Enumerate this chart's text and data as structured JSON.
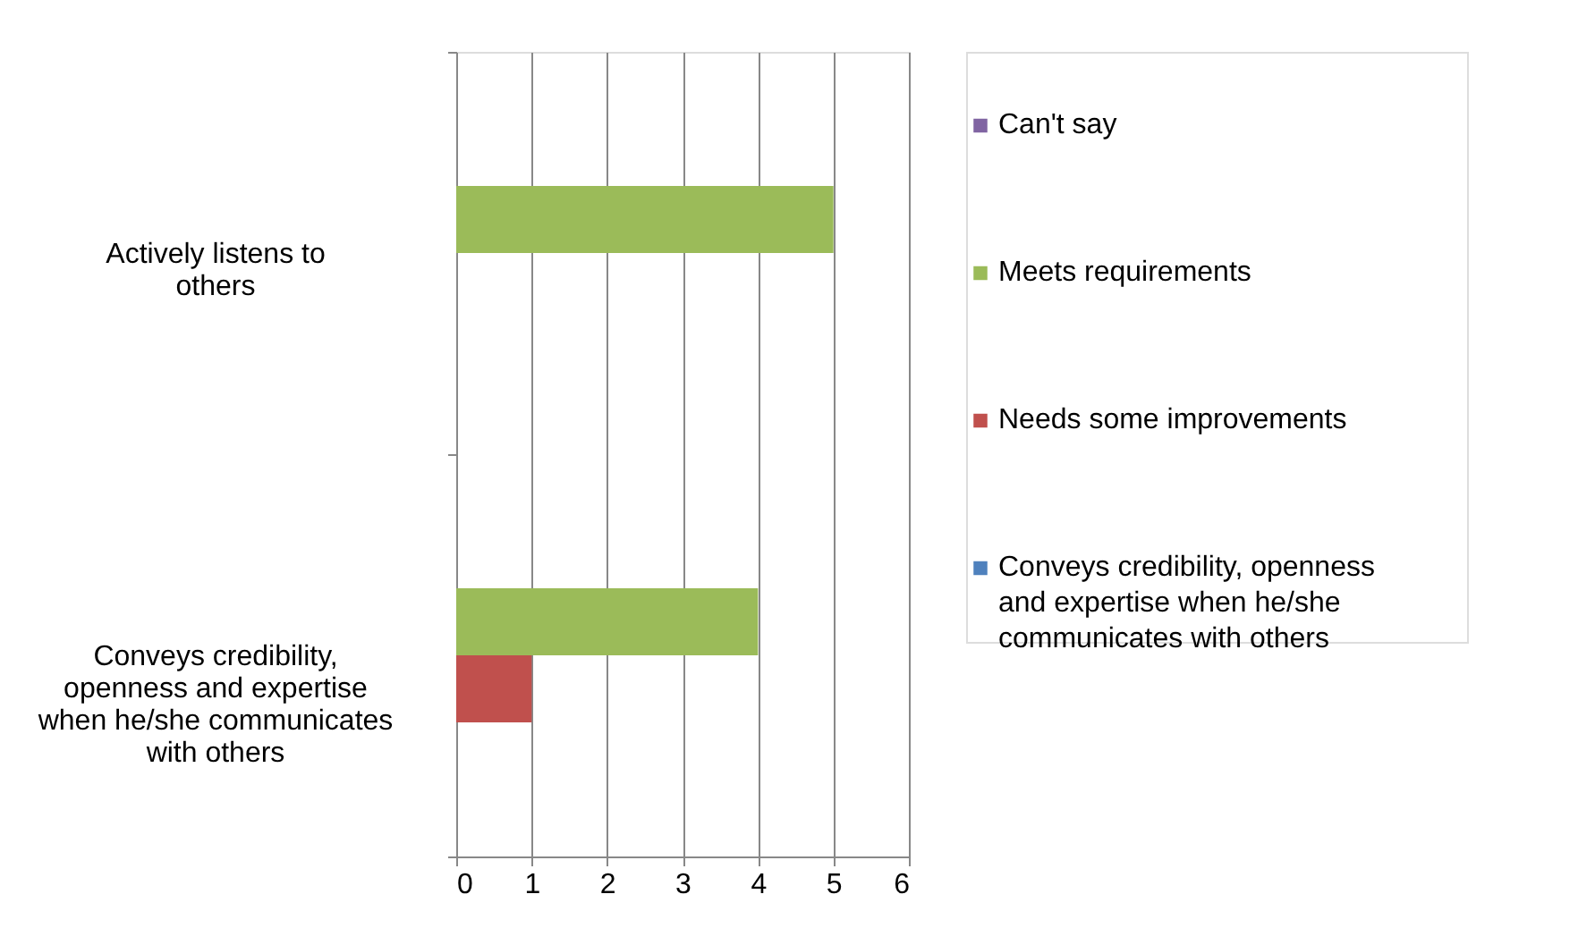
{
  "chart_data": {
    "type": "bar",
    "orientation": "horizontal",
    "categories": [
      "Actively listens to others",
      "Conveys credibility, openness and expertise when he/she communicates with others"
    ],
    "series": [
      {
        "name": "Can't say",
        "color": "#8064a2",
        "values": [
          0,
          0
        ]
      },
      {
        "name": "Meets requirements",
        "color": "#9bbb59",
        "values": [
          5,
          4
        ]
      },
      {
        "name": "Needs some improvements",
        "color": "#c0504d",
        "values": [
          0,
          1
        ]
      },
      {
        "name": "Conveys credibility, openness and expertise when he/she communicates with others",
        "color": "#4f81bd",
        "values": [
          0,
          0
        ]
      }
    ],
    "xlim": [
      0,
      6
    ],
    "xticks": [
      0,
      1,
      2,
      3,
      4,
      5,
      6
    ],
    "grid": "x",
    "legend": "right"
  }
}
